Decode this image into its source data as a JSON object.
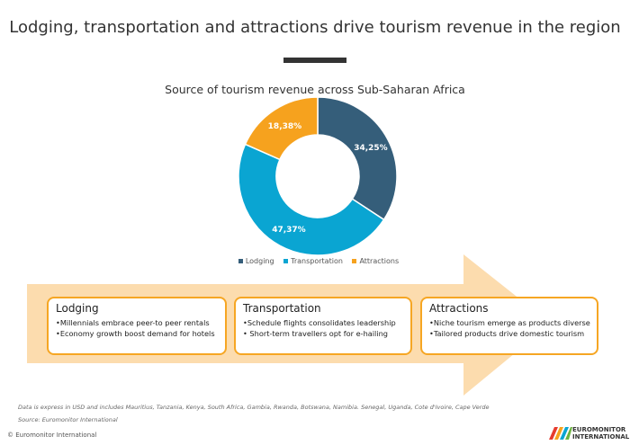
{
  "title": "Lodging, transportation and attractions drive tourism revenue in the region",
  "chart_data": {
    "type": "pie",
    "donut": true,
    "title": "Source of tourism revenue across Sub-Saharan Africa",
    "categories": [
      "Lodging",
      "Transportation",
      "Attractions"
    ],
    "values": [
      34.25,
      47.37,
      18.38
    ],
    "labels": [
      "34,25%",
      "47,37%",
      "18,38%"
    ],
    "colors": [
      "#355e7a",
      "#0aa5d2",
      "#f6a21e"
    ],
    "legend_position": "bottom"
  },
  "boxes": [
    {
      "title": "Lodging",
      "items": [
        "•Millennials embrace peer-to peer rentals",
        "•Economy growth boost demand for hotels"
      ]
    },
    {
      "title": "Transportation",
      "items": [
        "•Schedule flights consolidates leadership",
        "• Short-term travellers opt for e-hailing"
      ]
    },
    {
      "title": "Attractions",
      "items": [
        "•Niche tourism emerge as products diverse",
        "•Tailored products drive domestic tourism"
      ]
    }
  ],
  "footnote": "Data is express in USD and includes Mauritius, Tanzania, Kenya, South Africa, Gambia, Rwanda, Botswana, Namibia. Senegal, Uganda, Cote d'Ivoire, Cape Verde",
  "source": "Source: Euromonitor International",
  "copyright": "© Euromonitor International",
  "logo": "EUROMONITOR INTERNATIONAL"
}
